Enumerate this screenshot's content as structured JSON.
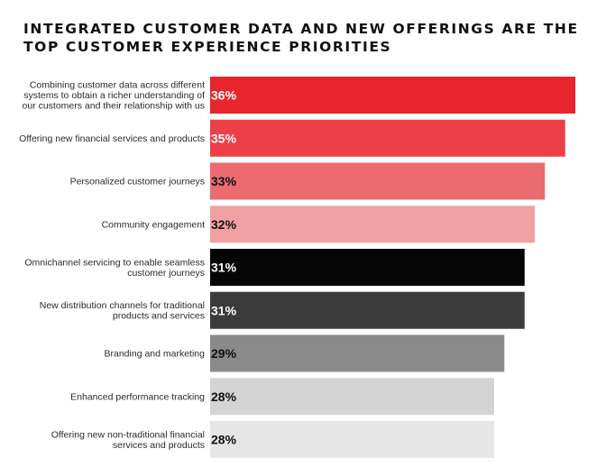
{
  "chart_data": {
    "type": "bar",
    "orientation": "horizontal",
    "title_lines": [
      "INTEGRATED CUSTOMER DATA AND NEW OFFERINGS ARE THE",
      "TOP CUSTOMER EXPERIENCE PRIORITIES"
    ],
    "categories": [
      [
        "Combining customer data across different",
        "systems to obtain a richer understanding of",
        "our customers and their relationship with us"
      ],
      [
        "Offering new financial services and products"
      ],
      [
        "Personalized customer journeys"
      ],
      [
        "Community engagement"
      ],
      [
        "Omnichannel servicing to enable seamless",
        "customer journeys"
      ],
      [
        "New distribution channels for traditional",
        "products and services"
      ],
      [
        "Branding and marketing"
      ],
      [
        "Enhanced performance tracking"
      ],
      [
        "Offering new non-traditional financial",
        "services and products"
      ]
    ],
    "values": [
      36,
      35,
      33,
      32,
      31,
      31,
      29,
      28,
      28
    ],
    "value_labels": [
      "36%",
      "35%",
      "33%",
      "32%",
      "31%",
      "31%",
      "29%",
      "28%",
      "28%"
    ],
    "bar_colors": [
      "#e8252d",
      "#ec3f47",
      "#ec6b6e",
      "#f0a1a3",
      "#050505",
      "#3b3b3b",
      "#8a8a8a",
      "#d4d4d4",
      "#e6e6e6"
    ],
    "label_colors": [
      "#ffffff",
      "#ffffff",
      "#111111",
      "#111111",
      "#ffffff",
      "#ffffff",
      "#111111",
      "#111111",
      "#111111"
    ],
    "xlim": [
      0,
      36
    ],
    "grid": false,
    "legend": "none"
  }
}
